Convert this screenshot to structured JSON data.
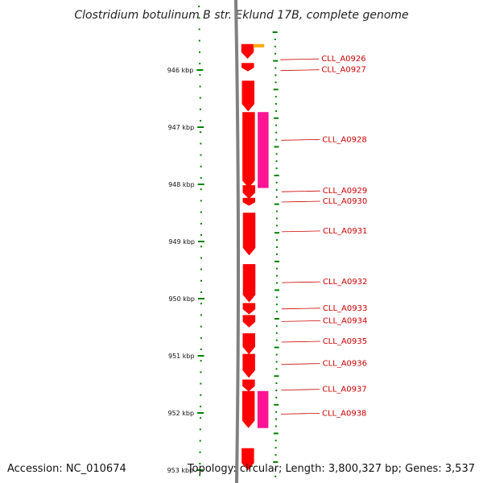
{
  "title": "Clostridium botulinum B str. Eklund 17B, complete genome",
  "accession": "Accession: NC_010674",
  "topology": "Topology: circular; Length: 3,800,327 bp; Genes: 3,537",
  "colors": {
    "cds": "#ff0000",
    "rna": "#ff1493",
    "other": "#ffa500",
    "backbone": "#808080",
    "ticks": "#008000",
    "label": "#cc0000"
  },
  "axis": {
    "kbp_min": 945.55,
    "kbp_max": 953.0,
    "tick_labels": [
      {
        "kbp": 946,
        "label": "946 kbp"
      },
      {
        "kbp": 947,
        "label": "947 kbp"
      },
      {
        "kbp": 948,
        "label": "948 kbp"
      },
      {
        "kbp": 949,
        "label": "949 kbp"
      },
      {
        "kbp": 950,
        "label": "950 kbp"
      },
      {
        "kbp": 951,
        "label": "951 kbp"
      },
      {
        "kbp": 952,
        "label": "952 kbp"
      },
      {
        "kbp": 953,
        "label": "953 kbp"
      }
    ]
  },
  "features": [
    {
      "type": "cds",
      "start": 945.55,
      "end": 945.8
    },
    {
      "type": "other",
      "start": 945.55,
      "end": 945.6
    },
    {
      "type": "cds",
      "start": 945.88,
      "end": 946.02
    },
    {
      "type": "cds",
      "start": 946.19,
      "end": 946.72
    },
    {
      "type": "cds",
      "start": 946.74,
      "end": 948.06
    },
    {
      "type": "rna",
      "start": 946.74,
      "end": 948.06
    },
    {
      "type": "cds",
      "start": 948.02,
      "end": 948.25
    },
    {
      "type": "cds",
      "start": 948.24,
      "end": 948.37
    },
    {
      "type": "cds",
      "start": 948.5,
      "end": 949.24
    },
    {
      "type": "cds",
      "start": 949.4,
      "end": 950.06
    },
    {
      "type": "cds",
      "start": 950.08,
      "end": 950.27
    },
    {
      "type": "cds",
      "start": 950.29,
      "end": 950.5
    },
    {
      "type": "cds",
      "start": 950.61,
      "end": 950.97
    },
    {
      "type": "cds",
      "start": 950.97,
      "end": 951.38
    },
    {
      "type": "cds",
      "start": 951.42,
      "end": 951.62
    },
    {
      "type": "cds",
      "start": 951.62,
      "end": 952.26
    },
    {
      "type": "rna",
      "start": 951.62,
      "end": 952.26
    },
    {
      "type": "cds",
      "start": 952.62,
      "end": 953.0
    }
  ],
  "gene_labels": [
    {
      "label": "CLL_A0926",
      "kbp": 945.82
    },
    {
      "label": "CLL_A0927",
      "kbp": 946.01
    },
    {
      "label": "CLL_A0928",
      "kbp": 947.23
    },
    {
      "label": "CLL_A0929",
      "kbp": 948.13
    },
    {
      "label": "CLL_A0930",
      "kbp": 948.31
    },
    {
      "label": "CLL_A0931",
      "kbp": 948.83
    },
    {
      "label": "CLL_A0932",
      "kbp": 949.72
    },
    {
      "label": "CLL_A0933",
      "kbp": 950.18
    },
    {
      "label": "CLL_A0934",
      "kbp": 950.4
    },
    {
      "label": "CLL_A0935",
      "kbp": 950.76
    },
    {
      "label": "CLL_A0936",
      "kbp": 951.15
    },
    {
      "label": "CLL_A0937",
      "kbp": 951.6
    },
    {
      "label": "CLL_A0938",
      "kbp": 952.02
    }
  ]
}
